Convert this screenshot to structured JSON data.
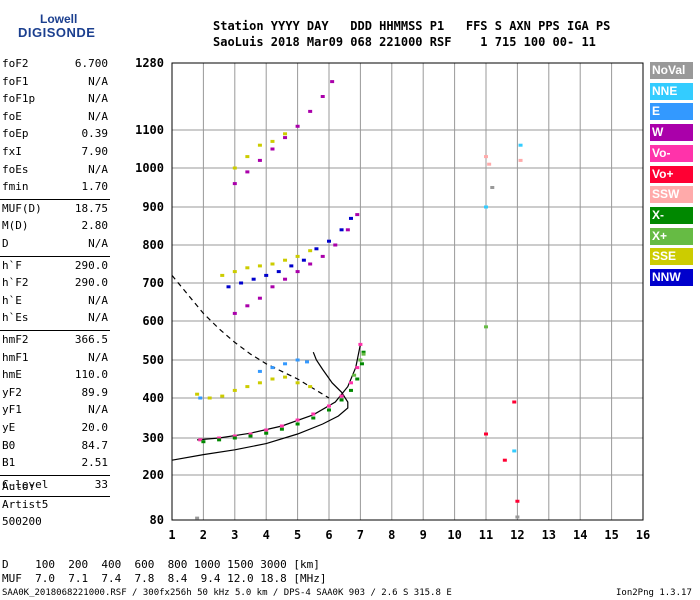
{
  "logo": {
    "line1": "Lowell",
    "line2": "DIGISONDE"
  },
  "header": {
    "line1": "Station YYYY DAY   DDD HHMMSS P1   FFS S AXN PPS IGA PS",
    "line2": "SaoLuis 2018 Mar09 068 221000 RSF    1 715 100 00- 11"
  },
  "params": [
    {
      "label": "foF2",
      "value": "6.700"
    },
    {
      "label": "foF1",
      "value": "N/A"
    },
    {
      "label": "foF1p",
      "value": "N/A"
    },
    {
      "label": "foE",
      "value": "N/A"
    },
    {
      "label": "foEp",
      "value": "0.39"
    },
    {
      "label": "fxI",
      "value": "7.90"
    },
    {
      "label": "foEs",
      "value": "N/A"
    },
    {
      "label": "fmin",
      "value": "1.70"
    },
    {
      "label": "MUF(D)",
      "value": "18.75"
    },
    {
      "label": "M(D)",
      "value": "2.80"
    },
    {
      "label": "D",
      "value": "N/A"
    },
    {
      "label": "h`F",
      "value": "290.0"
    },
    {
      "label": "h`F2",
      "value": "290.0"
    },
    {
      "label": "h`E",
      "value": "N/A"
    },
    {
      "label": "h`Es",
      "value": "N/A"
    },
    {
      "label": "hmF2",
      "value": "366.5"
    },
    {
      "label": "hmF1",
      "value": "N/A"
    },
    {
      "label": "hmE",
      "value": "110.0"
    },
    {
      "label": "yF2",
      "value": "89.9"
    },
    {
      "label": "yF1",
      "value": "N/A"
    },
    {
      "label": "yE",
      "value": "20.0"
    },
    {
      "label": "B0",
      "value": "84.7"
    },
    {
      "label": "B1",
      "value": "2.51"
    },
    {
      "label": "C-level",
      "value": "33"
    }
  ],
  "autoscaling": {
    "line1": "Auto:",
    "line2": "Artist5",
    "line3": "500200"
  },
  "legend": [
    {
      "label": "NoVal",
      "color": "#999999"
    },
    {
      "label": "NNE",
      "color": "#33ccff"
    },
    {
      "label": "E",
      "color": "#3399ff"
    },
    {
      "label": "W",
      "color": "#aa00aa"
    },
    {
      "label": "Vo-",
      "color": "#ff33aa"
    },
    {
      "label": "Vo+",
      "color": "#ff0033"
    },
    {
      "label": "SSW",
      "color": "#ffaaaa"
    },
    {
      "label": "X-",
      "color": "#008800"
    },
    {
      "label": "X+",
      "color": "#66bb44"
    },
    {
      "label": "SSE",
      "color": "#cccc00"
    },
    {
      "label": "NNW",
      "color": "#0000cc"
    }
  ],
  "muf_table": {
    "line1": "D    100  200  400  600  800 1000 1500 3000 [km]",
    "line2": "MUF  7.0  7.1  7.4  7.8  8.4  9.4 12.0 18.8 [MHz]"
  },
  "footer": {
    "left": "SAA0K_2018068221000.RSF / 300fx256h 50 kHz 5.0 km / DPS-4 SAA0K 903 / 2.6 S 315.8 E",
    "right": "Ion2Png 1.3.17"
  },
  "chart_data": {
    "type": "scatter",
    "xlabel": "",
    "ylabel": "",
    "xlim": [
      1,
      16
    ],
    "ylim": [
      80,
      1280
    ],
    "x_ticks": [
      1,
      2,
      3,
      4,
      5,
      6,
      7,
      8,
      9,
      10,
      11,
      12,
      13,
      14,
      15,
      16
    ],
    "y_ticks": [
      80,
      200,
      300,
      400,
      500,
      600,
      700,
      800,
      900,
      1000,
      1100,
      1280
    ],
    "grid": true,
    "series": [
      {
        "name": "SSE",
        "color": "#cccc00",
        "points": [
          [
            1.8,
            410
          ],
          [
            2.2,
            400
          ],
          [
            2.6,
            405
          ],
          [
            3.0,
            420
          ],
          [
            3.4,
            430
          ],
          [
            3.8,
            440
          ],
          [
            4.2,
            450
          ],
          [
            4.6,
            455
          ],
          [
            5.0,
            440
          ],
          [
            5.4,
            430
          ],
          [
            2.6,
            720
          ],
          [
            3.0,
            730
          ],
          [
            3.4,
            740
          ],
          [
            3.8,
            745
          ],
          [
            4.2,
            750
          ],
          [
            4.6,
            760
          ],
          [
            5.0,
            770
          ],
          [
            5.4,
            785
          ],
          [
            3.0,
            1000
          ],
          [
            3.4,
            1030
          ],
          [
            3.8,
            1060
          ],
          [
            4.2,
            1070
          ],
          [
            4.6,
            1090
          ]
        ]
      },
      {
        "name": "E",
        "color": "#3399ff",
        "points": [
          [
            3.8,
            470
          ],
          [
            4.2,
            480
          ],
          [
            4.6,
            490
          ],
          [
            5.0,
            500
          ],
          [
            5.3,
            495
          ],
          [
            1.9,
            400
          ]
        ]
      },
      {
        "name": "W",
        "color": "#aa00aa",
        "points": [
          [
            3.0,
            620
          ],
          [
            3.4,
            640
          ],
          [
            3.8,
            660
          ],
          [
            4.2,
            690
          ],
          [
            4.6,
            710
          ],
          [
            5.0,
            730
          ],
          [
            5.4,
            750
          ],
          [
            5.8,
            770
          ],
          [
            6.2,
            800
          ],
          [
            6.6,
            840
          ],
          [
            6.9,
            880
          ],
          [
            3.0,
            960
          ],
          [
            3.4,
            990
          ],
          [
            3.8,
            1020
          ],
          [
            4.2,
            1050
          ],
          [
            4.6,
            1080
          ],
          [
            5.0,
            1110
          ],
          [
            5.4,
            1150
          ],
          [
            5.8,
            1190
          ],
          [
            6.1,
            1230
          ]
        ]
      },
      {
        "name": "NNW",
        "color": "#0000cc",
        "points": [
          [
            2.8,
            690
          ],
          [
            3.2,
            700
          ],
          [
            3.6,
            710
          ],
          [
            4.0,
            720
          ],
          [
            4.4,
            730
          ],
          [
            4.8,
            745
          ],
          [
            5.2,
            760
          ],
          [
            5.6,
            790
          ],
          [
            6.0,
            810
          ],
          [
            6.4,
            840
          ],
          [
            6.7,
            870
          ]
        ]
      },
      {
        "name": "Vo-",
        "color": "#ff33aa",
        "points": [
          [
            1.9,
            295
          ],
          [
            2.5,
            300
          ],
          [
            3.0,
            305
          ],
          [
            3.5,
            310
          ],
          [
            4.0,
            320
          ],
          [
            4.5,
            330
          ],
          [
            5.0,
            345
          ],
          [
            5.5,
            360
          ],
          [
            6.0,
            380
          ],
          [
            6.4,
            405
          ],
          [
            6.7,
            440
          ],
          [
            6.9,
            480
          ],
          [
            7.0,
            540
          ]
        ]
      },
      {
        "name": "X-",
        "color": "#008800",
        "points": [
          [
            2.0,
            290
          ],
          [
            2.5,
            295
          ],
          [
            3.0,
            300
          ],
          [
            3.5,
            305
          ],
          [
            4.0,
            312
          ],
          [
            4.5,
            322
          ],
          [
            5.0,
            335
          ],
          [
            5.5,
            350
          ],
          [
            6.0,
            370
          ],
          [
            6.4,
            395
          ],
          [
            6.7,
            420
          ],
          [
            6.9,
            450
          ],
          [
            7.05,
            490
          ],
          [
            7.1,
            520
          ]
        ]
      },
      {
        "name": "Vo+",
        "color": "#ff0033",
        "points": [
          [
            11.0,
            310
          ],
          [
            11.9,
            390
          ],
          [
            12.0,
            130
          ],
          [
            11.6,
            240
          ]
        ]
      },
      {
        "name": "NNE",
        "color": "#33ccff",
        "points": [
          [
            11.9,
            265
          ],
          [
            12.1,
            1060
          ],
          [
            11.0,
            900
          ]
        ]
      },
      {
        "name": "X+",
        "color": "#66bb44",
        "points": [
          [
            6.8,
            460
          ],
          [
            7.0,
            500
          ],
          [
            7.1,
            515
          ],
          [
            11.0,
            585
          ]
        ]
      },
      {
        "name": "SSW",
        "color": "#ffaaaa",
        "points": [
          [
            11.0,
            1030
          ],
          [
            12.1,
            1020
          ],
          [
            11.1,
            1010
          ]
        ]
      },
      {
        "name": "NoVal",
        "color": "#999999",
        "points": [
          [
            1.8,
            85
          ],
          [
            12.0,
            88
          ],
          [
            11.2,
            950
          ]
        ]
      }
    ],
    "curves": [
      {
        "name": "",
        "style": "solid",
        "points": [
          [
            1.0,
            240
          ],
          [
            2.0,
            255
          ],
          [
            3.0,
            268
          ],
          [
            4.0,
            285
          ],
          [
            5.0,
            310
          ],
          [
            5.8,
            335
          ],
          [
            6.3,
            355
          ],
          [
            6.6,
            375
          ],
          [
            6.6,
            390
          ],
          [
            6.4,
            415
          ],
          [
            6.1,
            440
          ],
          [
            5.8,
            475
          ],
          [
            5.6,
            500
          ],
          [
            5.5,
            520
          ]
        ]
      },
      {
        "name": "",
        "style": "solid",
        "points": [
          [
            1.8,
            295
          ],
          [
            2.5,
            300
          ],
          [
            3.5,
            312
          ],
          [
            4.5,
            330
          ],
          [
            5.5,
            358
          ],
          [
            6.2,
            390
          ],
          [
            6.6,
            430
          ],
          [
            6.85,
            480
          ],
          [
            7.0,
            540
          ]
        ]
      },
      {
        "name": "",
        "style": "dashed",
        "points": [
          [
            1.0,
            720
          ],
          [
            1.5,
            670
          ],
          [
            2.0,
            620
          ],
          [
            2.5,
            580
          ],
          [
            3.0,
            545
          ],
          [
            3.5,
            515
          ],
          [
            4.0,
            490
          ],
          [
            4.5,
            470
          ],
          [
            5.0,
            450
          ],
          [
            5.5,
            425
          ],
          [
            6.0,
            400
          ]
        ]
      }
    ]
  }
}
